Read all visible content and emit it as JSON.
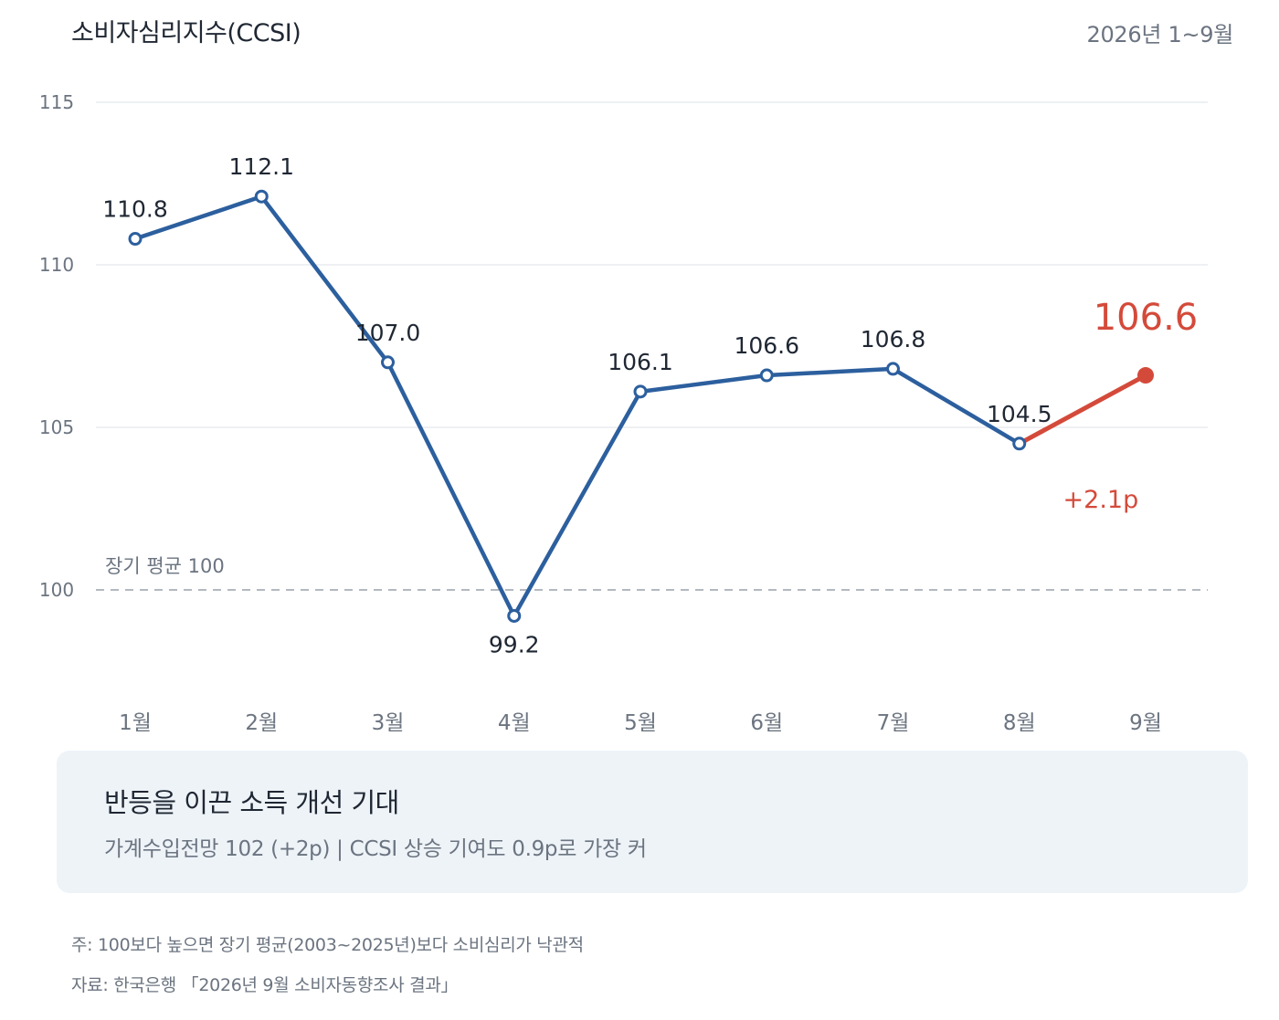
{
  "header": {
    "title": "소비자심리지수(CCSI)",
    "period": "2026년 1~9월"
  },
  "chart_data": {
    "type": "line",
    "title": "소비자심리지수(CCSI)",
    "categories": [
      "1월",
      "2월",
      "3월",
      "4월",
      "5월",
      "6월",
      "7월",
      "8월",
      "9월"
    ],
    "values": [
      110.8,
      112.1,
      107.0,
      99.2,
      106.1,
      106.6,
      106.8,
      104.5,
      106.6
    ],
    "value_labels": [
      "110.8",
      "112.1",
      "107.0",
      "99.2",
      "106.1",
      "106.6",
      "106.8",
      "104.5",
      "106.6"
    ],
    "yticks": [
      100,
      105,
      110,
      115
    ],
    "ytick_labels": [
      "100",
      "105",
      "110",
      "115"
    ],
    "ylim": [
      96,
      115
    ],
    "grid": true,
    "reference_line": {
      "value": 100,
      "label": "장기 평균 100"
    },
    "highlight": {
      "from_index": 7,
      "to_index": 8,
      "change_label": "+2.1p"
    },
    "colors": {
      "line": "#2c5f9e",
      "highlight": "#d44a3a",
      "grid": "#e3e7ec",
      "reference": "#9aa2ab",
      "axis_text": "#6b7480",
      "label_text": "#1f2733"
    }
  },
  "callout": {
    "title": "반등을 이끈 소득 개선 기대",
    "subtitle": "가계수입전망 102 (+2p) | CCSI 상승 기여도 0.9p로 가장 커"
  },
  "footnotes": {
    "note": "주: 100보다 높으면 장기 평균(2003~2025년)보다 소비심리가 낙관적",
    "source": "자료: 한국은행 「2026년 9월 소비자동향조사 결과」"
  }
}
